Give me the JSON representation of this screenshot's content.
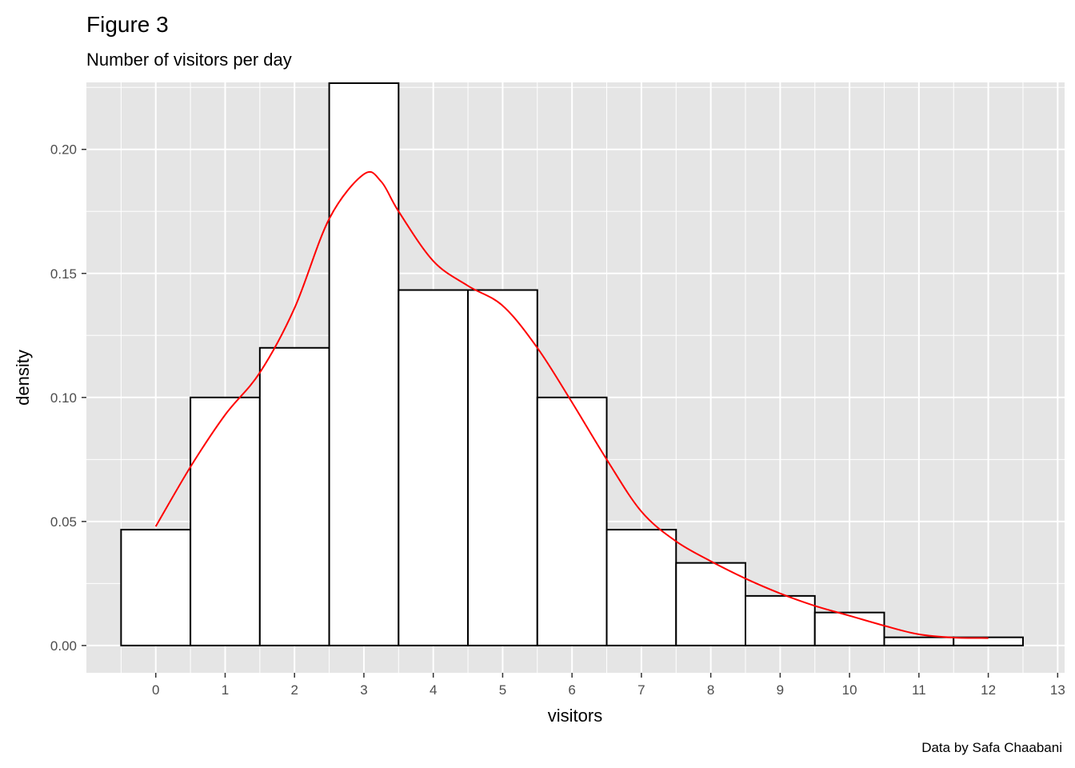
{
  "chart_data": {
    "type": "bar",
    "title": "Figure 3",
    "subtitle": "Number of visitors per day",
    "caption": "Data by Safa Chaabani",
    "xlabel": "visitors",
    "ylabel": "density",
    "xlim": [
      -1.0,
      13.1
    ],
    "ylim": [
      -0.011,
      0.227
    ],
    "x_ticks": [
      "0",
      "1",
      "2",
      "3",
      "4",
      "5",
      "6",
      "7",
      "8",
      "9",
      "10",
      "11",
      "12",
      "13"
    ],
    "y_ticks": [
      "0.00",
      "0.05",
      "0.10",
      "0.15",
      "0.20"
    ],
    "bin_width": 1,
    "bins": [
      {
        "x": 0,
        "density": 0.0467
      },
      {
        "x": 1,
        "density": 0.1
      },
      {
        "x": 2,
        "density": 0.12
      },
      {
        "x": 3,
        "density": 0.2267
      },
      {
        "x": 4,
        "density": 0.1433
      },
      {
        "x": 5,
        "density": 0.1433
      },
      {
        "x": 6,
        "density": 0.1
      },
      {
        "x": 7,
        "density": 0.0467
      },
      {
        "x": 8,
        "density": 0.0333
      },
      {
        "x": 9,
        "density": 0.02
      },
      {
        "x": 10,
        "density": 0.0133
      },
      {
        "x": 11,
        "density": 0.0033
      },
      {
        "x": 12,
        "density": 0.0033
      }
    ],
    "density_curve": {
      "color": "#ff0000",
      "x": [
        0,
        0.5,
        1,
        1.5,
        2,
        2.5,
        3,
        3.25,
        3.5,
        4,
        4.5,
        5,
        5.5,
        6,
        6.5,
        7,
        7.5,
        8,
        8.5,
        9,
        9.5,
        10,
        10.5,
        11,
        11.5,
        12
      ],
      "y": [
        0.048,
        0.072,
        0.093,
        0.11,
        0.136,
        0.172,
        0.19,
        0.187,
        0.175,
        0.155,
        0.145,
        0.137,
        0.12,
        0.098,
        0.075,
        0.054,
        0.042,
        0.034,
        0.027,
        0.021,
        0.016,
        0.012,
        0.008,
        0.0045,
        0.0032,
        0.003
      ]
    },
    "colors": {
      "panel_background": "#e5e5e5",
      "grid": "#ffffff",
      "bar_fill": "#ffffff",
      "bar_outline": "#000000"
    },
    "grid": true,
    "legend": "none"
  }
}
